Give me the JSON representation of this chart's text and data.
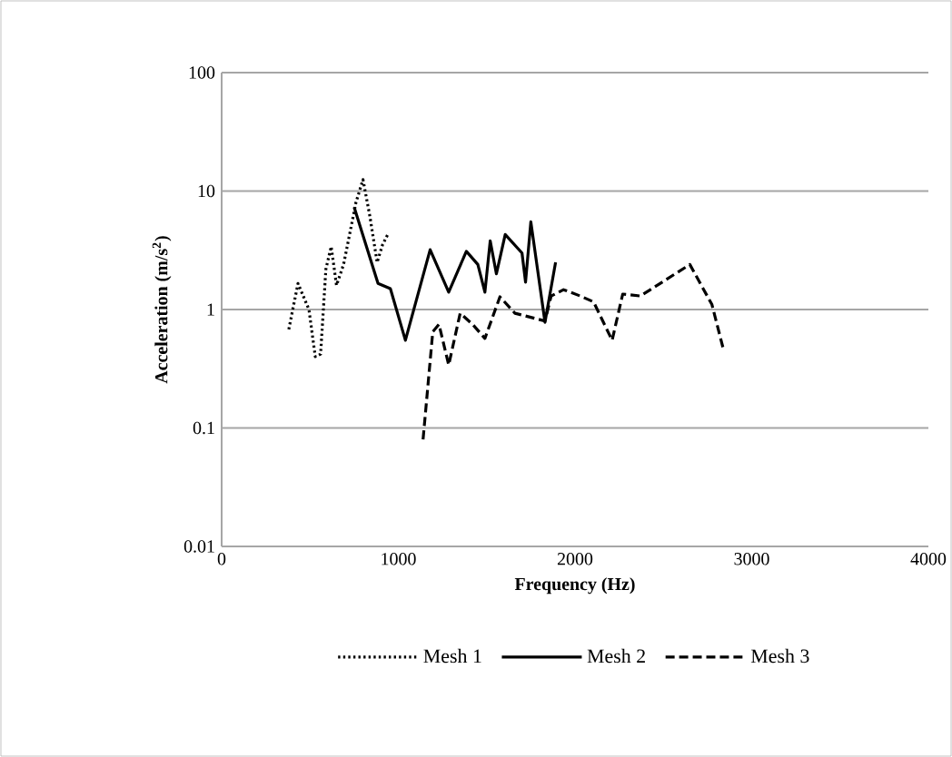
{
  "chart_data": {
    "type": "line",
    "xlabel": "Frequency (Hz)",
    "ylabel": "Acceleration  (m/s$^{2}$)",
    "xlim": [
      0,
      4000
    ],
    "xticks": [
      0,
      1000,
      2000,
      3000,
      4000
    ],
    "ylim": [
      0.01,
      100
    ],
    "yticks": [
      0.01,
      0.1,
      1,
      10,
      100
    ],
    "log": "y",
    "grid": "y",
    "legend": "bottom",
    "series": [
      {
        "name": "Mesh 1",
        "color": "#000000",
        "line_style": "dotted",
        "x": [
          380,
          432,
          494,
          530,
          560,
          590,
          620,
          650,
          690,
          720,
          760,
          800,
          840,
          880,
          910,
          940
        ],
        "values": [
          0.68,
          1.66,
          1.0,
          0.4,
          0.42,
          2.2,
          3.4,
          1.6,
          2.4,
          4.0,
          8.0,
          12.5,
          6.0,
          2.5,
          3.5,
          4.3
        ]
      },
      {
        "name": "Mesh 2",
        "color": "#000000",
        "line_style": "solid",
        "x": [
          750,
          885,
          955,
          1040,
          1180,
          1285,
          1385,
          1450,
          1490,
          1520,
          1555,
          1605,
          1700,
          1720,
          1750,
          1830,
          1890
        ],
        "values": [
          7.3,
          1.66,
          1.5,
          0.55,
          3.2,
          1.4,
          3.1,
          2.4,
          1.4,
          3.8,
          2.0,
          4.3,
          3.0,
          1.7,
          5.5,
          0.78,
          2.5
        ]
      },
      {
        "name": "Mesh 3",
        "color": "#000000",
        "line_style": "dashed",
        "x": [
          1140,
          1195,
          1230,
          1285,
          1350,
          1420,
          1490,
          1575,
          1660,
          1830,
          1865,
          1935,
          2030,
          2105,
          2210,
          2270,
          2370,
          2650,
          2775,
          2840
        ],
        "values": [
          0.08,
          0.65,
          0.75,
          0.34,
          0.93,
          0.75,
          0.57,
          1.28,
          0.93,
          0.8,
          1.3,
          1.47,
          1.3,
          1.16,
          0.55,
          1.35,
          1.3,
          2.4,
          1.1,
          0.46
        ]
      }
    ]
  }
}
